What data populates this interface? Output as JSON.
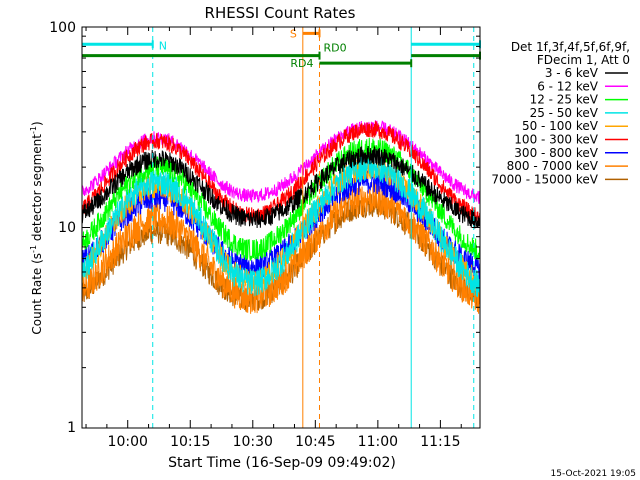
{
  "chart_data": {
    "type": "line",
    "title": "RHESSI Count Rates",
    "xlabel": "Start Time (16-Sep-09 09:49:02)",
    "ylabel_main": "Count Rate (s",
    "ylabel_sup1": "-1",
    "ylabel_mid": " detector segment",
    "ylabel_sup2": "-1",
    "ylabel_end": ")",
    "y_scale": "log",
    "ylim": [
      1,
      100
    ],
    "xlim": [
      "09:49:02",
      "11:24:30"
    ],
    "x_ticks": [
      "10:00",
      "10:15",
      "10:30",
      "10:45",
      "11:00",
      "11:15"
    ],
    "y_tick_labels": [
      "1",
      "10",
      "100"
    ],
    "legend": {
      "header1": "Det 1f,3f,4f,5f,6f,9f,",
      "header2": "FDecim 1, Att 0",
      "entries": [
        {
          "label": "3 - 6 keV",
          "color": "#000000"
        },
        {
          "label": "6 - 12 keV",
          "color": "#ff00ff"
        },
        {
          "label": "12 - 25 keV",
          "color": "#00ff00"
        },
        {
          "label": "25 - 50 keV",
          "color": "#00e5e5"
        },
        {
          "label": "50 - 100 keV",
          "color": "#ffa500"
        },
        {
          "label": "100 - 300 keV",
          "color": "#ff0000"
        },
        {
          "label": "300 - 800 keV",
          "color": "#0000ff"
        },
        {
          "label": "800 - 7000 keV",
          "color": "#ff8000"
        },
        {
          "label": "7000 - 15000 keV",
          "color": "#b06000"
        }
      ]
    },
    "series": [
      {
        "name": "7000 - 15000 keV",
        "color": "#b06000",
        "base": 3.8,
        "peaks": [
          9.5,
          13
        ],
        "noise": 0.09
      },
      {
        "name": "800 - 7000 keV",
        "color": "#ff8000",
        "base": 3.8,
        "peaks": [
          11,
          14
        ],
        "noise": 0.12
      },
      {
        "name": "300 - 800 keV",
        "color": "#0000ff",
        "base": 5.6,
        "peaks": [
          14,
          17
        ],
        "noise": 0.09
      },
      {
        "name": "50 - 100 keV",
        "color": "#ffa500",
        "base": 4.4,
        "peaks": [
          16,
          20
        ],
        "noise": 0.09
      },
      {
        "name": "25 - 50 keV",
        "color": "#00e5e5",
        "base": 4.2,
        "peaks": [
          17,
          20
        ],
        "noise": 0.1
      },
      {
        "name": "12 - 25 keV",
        "color": "#00ff00",
        "base": 6.5,
        "peaks": [
          20,
          25
        ],
        "noise": 0.08
      },
      {
        "name": "6 - 12 keV",
        "color": "#ff00ff",
        "base": 13,
        "peaks": [
          28,
          32
        ],
        "noise": 0.05
      },
      {
        "name": "100 - 300 keV",
        "color": "#ff0000",
        "base": 10,
        "peaks": [
          27,
          31
        ],
        "noise": 0.06
      },
      {
        "name": "3 - 6 keV",
        "color": "#000000",
        "base": 10,
        "peaks": [
          22,
          23
        ],
        "noise": 0.07
      }
    ],
    "peak_times": [
      "10:07",
      "10:58"
    ],
    "vlines": [
      {
        "time": "09:49:02",
        "color": "#00e5e5",
        "dash": false
      },
      {
        "time": "10:06",
        "color": "#00e5e5",
        "dash": true
      },
      {
        "time": "10:42",
        "color": "#ff8000",
        "dash": false
      },
      {
        "time": "10:46",
        "color": "#ff8000",
        "dash": true
      },
      {
        "time": "11:08",
        "color": "#00e5e5",
        "dash": false
      },
      {
        "time": "11:23",
        "color": "#00e5e5",
        "dash": true
      }
    ],
    "flags": [
      {
        "label": "N",
        "color": "#00e5e5",
        "segments": [
          [
            "09:49:02",
            "10:06"
          ],
          [
            "11:08",
            "11:24:30"
          ]
        ],
        "level": 82
      },
      {
        "label": "S",
        "color": "#ff8000",
        "segments": [
          [
            "10:42",
            "10:46"
          ]
        ],
        "level": 93
      },
      {
        "label": "RD0",
        "color": "#008000",
        "segments": [
          [
            "09:49:02",
            "10:46"
          ],
          [
            "11:08",
            "11:24:30"
          ]
        ],
        "level": 72
      },
      {
        "label": "RD4",
        "color": "#008000",
        "segments": [
          [
            "10:46",
            "11:08"
          ]
        ],
        "level": 66
      }
    ]
  },
  "timestamp": "15-Oct-2021 19:05"
}
